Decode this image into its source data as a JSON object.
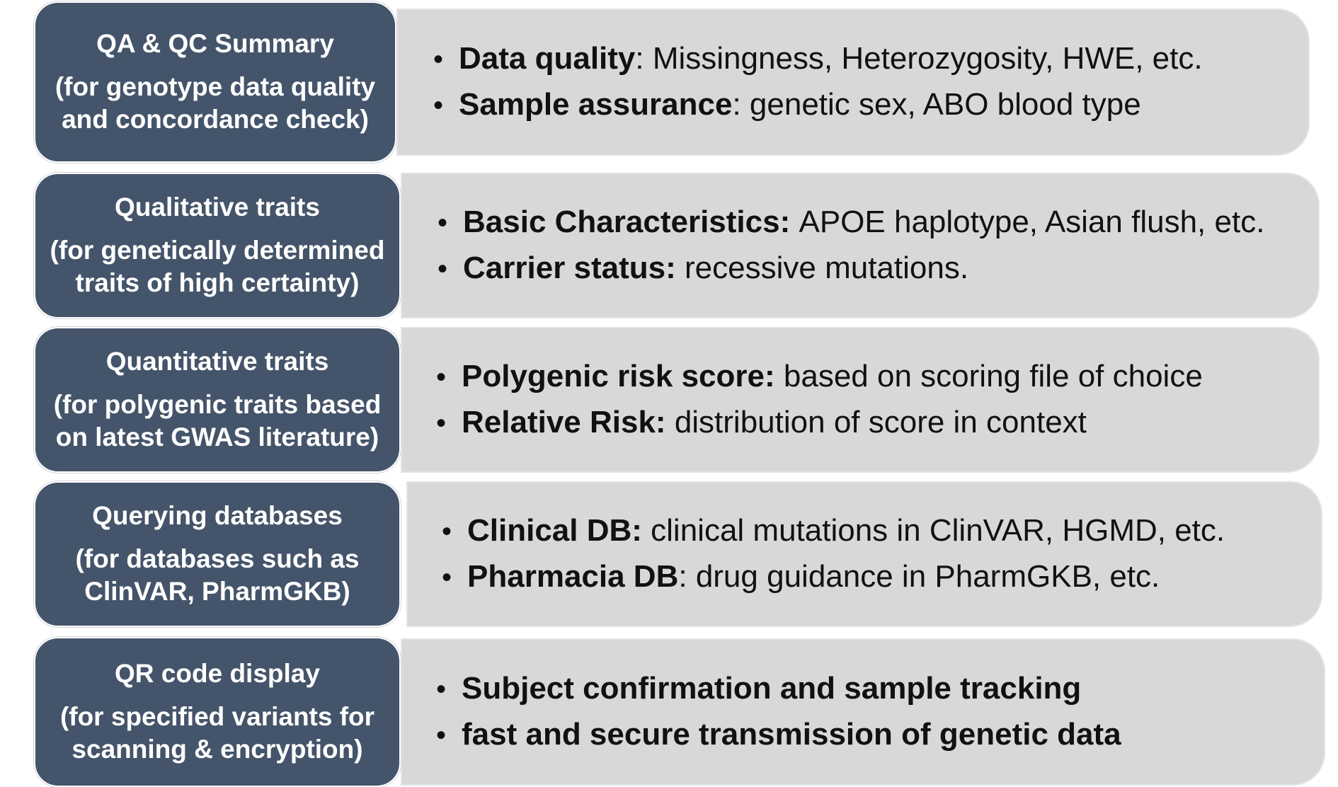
{
  "rows": [
    {
      "title": "QA & QC Summary",
      "subtitle_1": "(for genotype data quality",
      "subtitle_2": "and concordance check)",
      "bullets": [
        {
          "term": "Data quality",
          "sep": ": ",
          "text": "Missingness, Heterozygosity, HWE, etc."
        },
        {
          "term": "Sample assurance",
          "sep": ": ",
          "text": "genetic sex, ABO blood type"
        }
      ]
    },
    {
      "title": "Qualitative traits",
      "subtitle_1": "(for genetically determined",
      "subtitle_2": "traits of high certainty)",
      "bullets": [
        {
          "term": "Basic Characteristics:",
          "sep": " ",
          "text": "APOE haplotype, Asian flush, etc."
        },
        {
          "term": "Carrier status:",
          "sep": " ",
          "text": "recessive mutations."
        }
      ]
    },
    {
      "title": "Quantitative traits",
      "subtitle_1": "(for polygenic traits based",
      "subtitle_2": "on latest GWAS literature)",
      "bullets": [
        {
          "term": "Polygenic risk score:",
          "sep": " ",
          "text": "based on scoring file of choice"
        },
        {
          "term": "Relative Risk:",
          "sep": " ",
          "text": "distribution of score in context"
        }
      ]
    },
    {
      "title": "Querying databases",
      "subtitle_1": "(for databases such as",
      "subtitle_2": "ClinVAR, PharmGKB)",
      "bullets": [
        {
          "term": "Clinical DB:",
          "sep": " ",
          "text": "clinical mutations in ClinVAR, HGMD, etc."
        },
        {
          "term": "Pharmacia DB",
          "sep": ": ",
          "text": "drug guidance in PharmGKB, etc."
        }
      ]
    },
    {
      "title": "QR code display",
      "subtitle_1": "(for specified variants for",
      "subtitle_2": "scanning & encryption)",
      "bullets": [
        {
          "text": "Subject confirmation and sample tracking"
        },
        {
          "text": "fast and secure transmission of genetic data"
        }
      ]
    }
  ],
  "colors": {
    "title_bg": "#44546a",
    "content_bg": "#d8d8d8",
    "text": "#111111"
  },
  "bullet_glyph": "•"
}
